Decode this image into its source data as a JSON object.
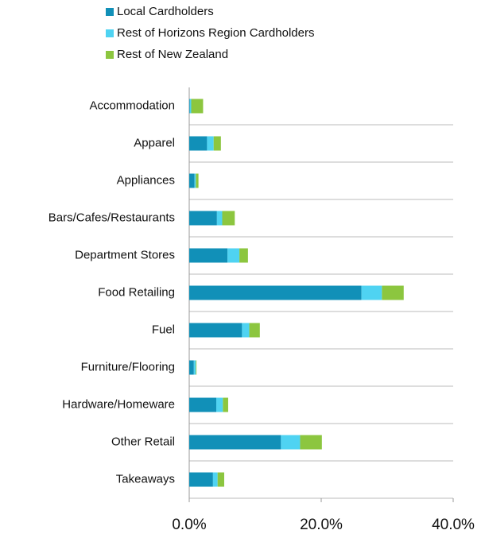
{
  "chart_data": {
    "type": "stacked-bar-horizontal",
    "categories": [
      "Accommodation",
      "Apparel",
      "Appliances",
      "Bars/Cafes/Restaurants",
      "Department Stores",
      "Food Retailing",
      "Fuel",
      "Furniture/Flooring",
      "Hardware/Homeware",
      "Other Retail",
      "Takeaways"
    ],
    "series": [
      {
        "name": "Local Cardholders",
        "color": "#1190b8",
        "values": [
          0.1,
          2.7,
          0.8,
          4.2,
          5.8,
          26.1,
          8.0,
          0.7,
          4.1,
          13.9,
          3.6
        ]
      },
      {
        "name": "Rest of Horizons Region Cardholders",
        "color": "#4fd3f2",
        "values": [
          0.2,
          1.0,
          0.2,
          0.8,
          1.8,
          3.1,
          1.1,
          0.3,
          1.0,
          2.9,
          0.7
        ]
      },
      {
        "name": "Rest of New Zealand",
        "color": "#8cc63f",
        "values": [
          1.8,
          1.1,
          0.4,
          1.9,
          1.3,
          3.3,
          1.6,
          0.1,
          0.8,
          3.3,
          1.0
        ]
      }
    ],
    "xlim": [
      0,
      40
    ],
    "xticks": [
      {
        "value": 0,
        "label": "0.0%"
      },
      {
        "value": 20,
        "label": "20.0%"
      },
      {
        "value": 40,
        "label": "40.0%"
      }
    ],
    "legend": "top"
  }
}
